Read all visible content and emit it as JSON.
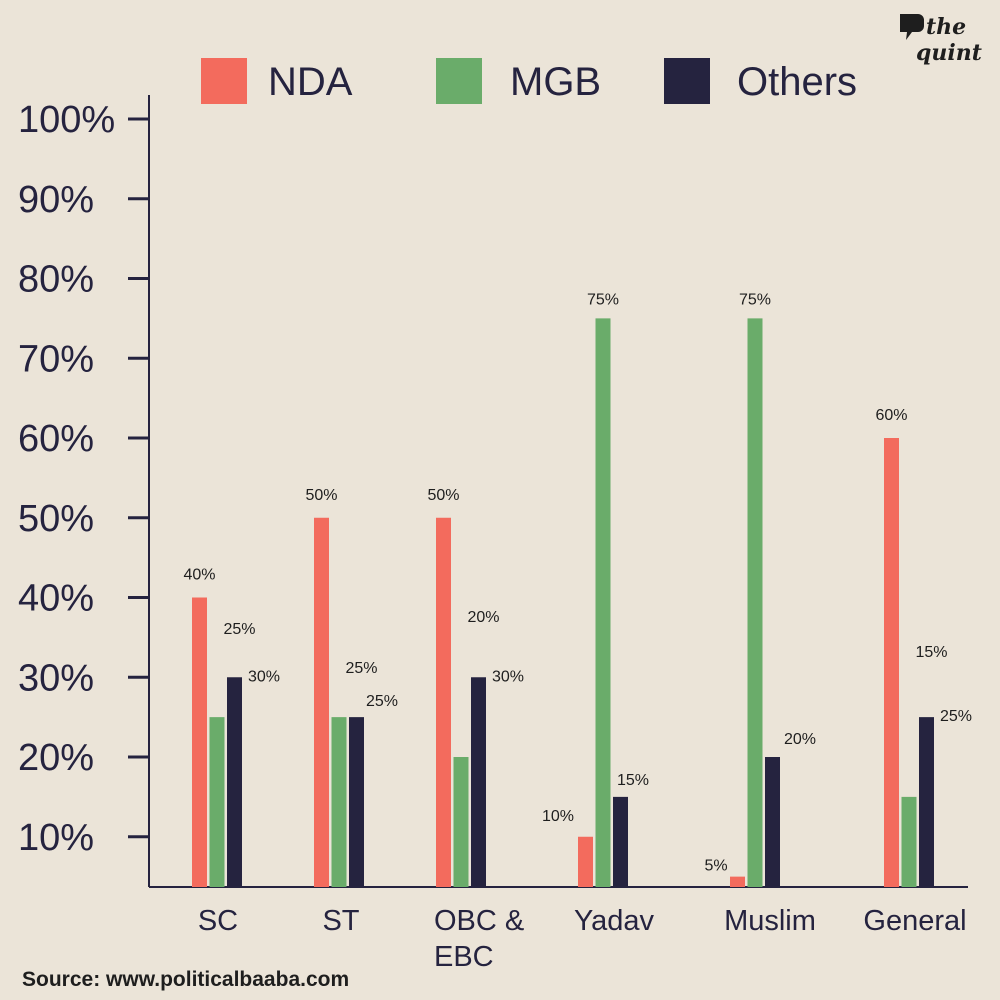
{
  "brand": {
    "logo_line1": "the",
    "logo_line2": "quint"
  },
  "source": "Source: www.politicalbaaba.com",
  "chart_data": {
    "type": "bar",
    "title": "",
    "xlabel": "",
    "ylabel": "",
    "ylim": [
      3.7,
      100
    ],
    "y_ticks": [
      10,
      20,
      30,
      40,
      50,
      60,
      70,
      80,
      90,
      100
    ],
    "y_tick_labels": [
      "10%",
      "20%",
      "30%",
      "40%",
      "50%",
      "60%",
      "70%",
      "80%",
      "90%",
      "100%"
    ],
    "grid": false,
    "legend_position": "top",
    "categories": [
      [
        "SC"
      ],
      [
        "ST"
      ],
      [
        "OBC &",
        "EBC"
      ],
      [
        "Yadav"
      ],
      [
        "Muslim"
      ],
      [
        "General"
      ]
    ],
    "series": [
      {
        "name": "NDA",
        "color": "#f36b5d",
        "values": [
          40,
          50,
          50,
          10,
          5,
          60
        ],
        "labels": [
          "40%",
          "50%",
          "50%",
          "10%",
          "5%",
          "60%"
        ]
      },
      {
        "name": "MGB",
        "color": "#6aac6a",
        "values": [
          25,
          25,
          20,
          75,
          75,
          15
        ],
        "labels": [
          "25%",
          "25%",
          "20%",
          "75%",
          "75%",
          "15%"
        ]
      },
      {
        "name": "Others",
        "color": "#25233f",
        "values": [
          30,
          25,
          30,
          15,
          20,
          25
        ],
        "labels": [
          "30%",
          "25%",
          "30%",
          "15%",
          "20%",
          "25%"
        ]
      }
    ]
  }
}
